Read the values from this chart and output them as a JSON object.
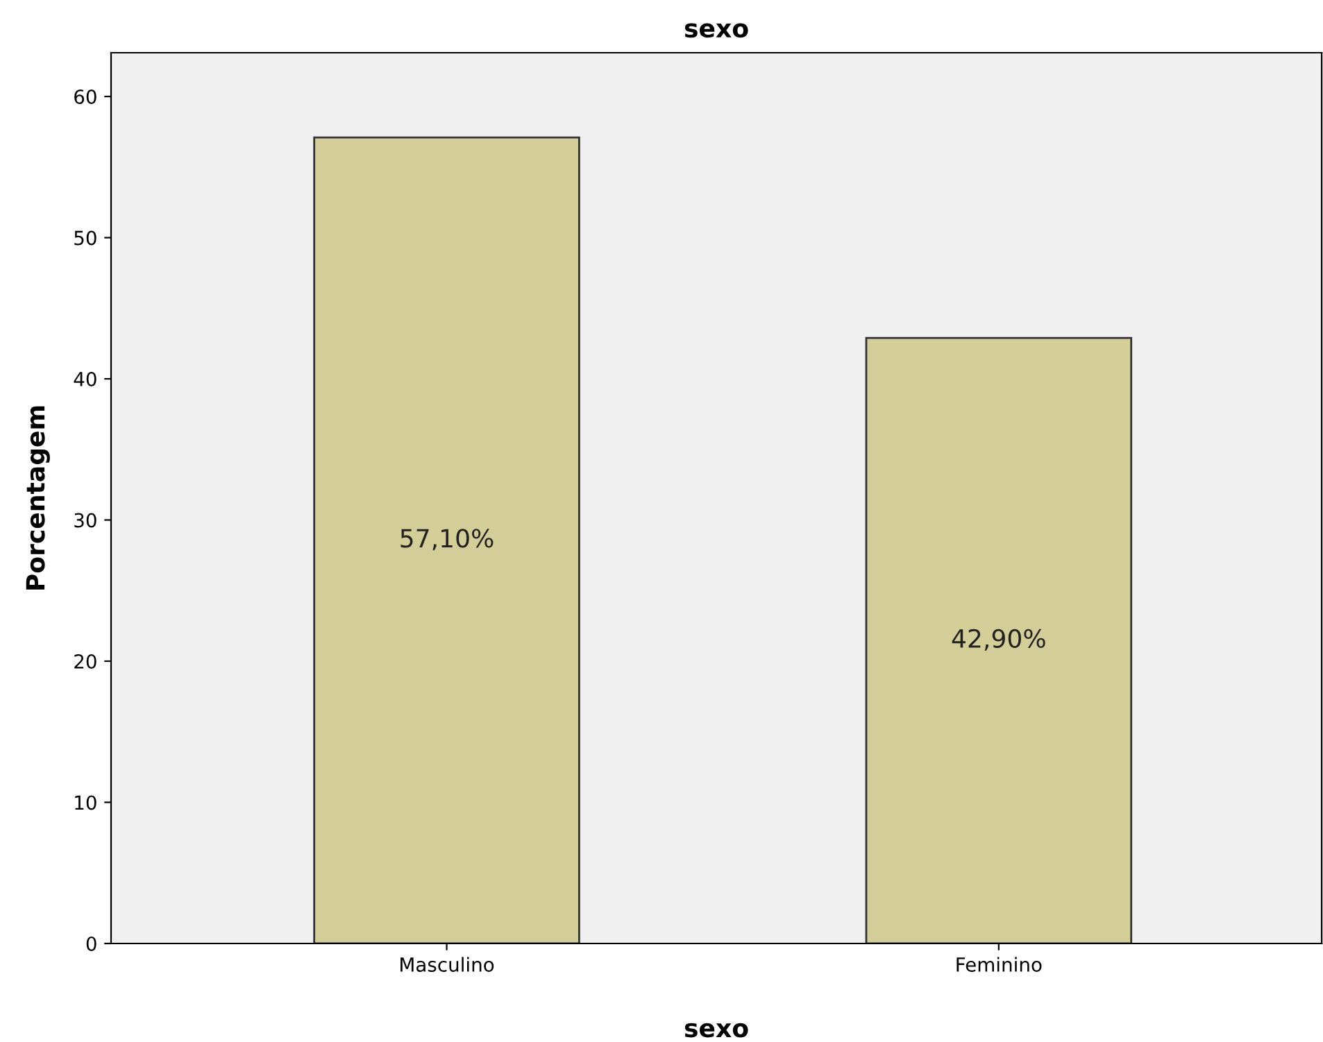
{
  "chart_data": {
    "type": "bar",
    "title": "sexo",
    "xlabel": "sexo",
    "ylabel": "Porcentagem",
    "categories": [
      "Masculino",
      "Feminino"
    ],
    "values": [
      57.1,
      42.9
    ],
    "value_labels": [
      "57,10%",
      "42,90%"
    ],
    "color": "#d3ce97",
    "ylim": [
      0,
      63.1
    ],
    "yticks": [
      0,
      10,
      20,
      30,
      40,
      50,
      60
    ],
    "grid": false,
    "legend": false
  }
}
